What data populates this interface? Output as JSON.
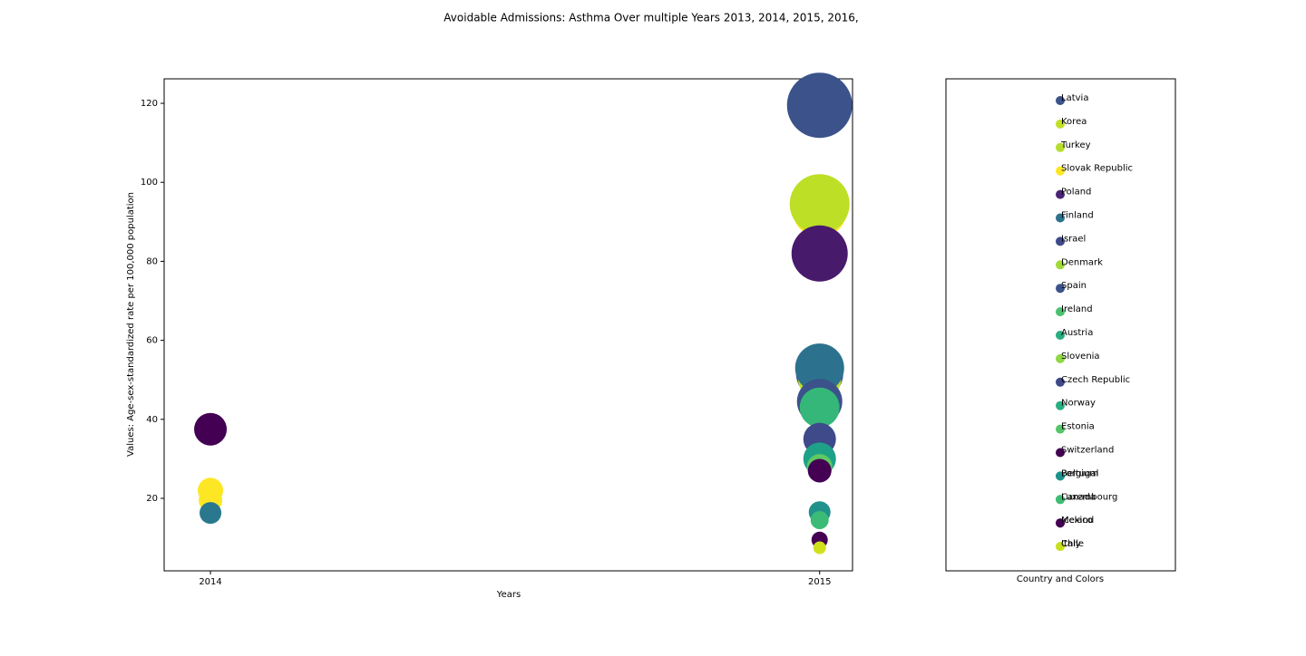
{
  "chart_data": [
    {
      "type": "scatter",
      "title": "Avoidable Admissions: Asthma Over multiple Years 2013, 2014, 2015, 2016,",
      "x_label": "Years",
      "y_label": "Values: Age-sex-standardized rate per 100,000 population",
      "xlim": [
        2013.924,
        2015.054
      ],
      "ylim": [
        1.65,
        126.2
      ],
      "xticks": [
        2014,
        2015
      ],
      "yticks": [
        20,
        40,
        60,
        80,
        100,
        120
      ],
      "x": [
        2014,
        2014,
        2014,
        2014,
        2015,
        2015,
        2015,
        2015,
        2015,
        2015,
        2015,
        2015,
        2015,
        2015,
        2015,
        2015,
        2015,
        2015,
        2015,
        2015,
        2015
      ],
      "values": [
        37.5,
        22,
        19.5,
        16.3,
        119.5,
        93,
        94.5,
        82,
        51.5,
        50.5,
        53,
        44.5,
        43,
        35,
        30,
        28,
        27,
        16.5,
        14.5,
        9.5,
        7.5
      ],
      "sizes": [
        18,
        14,
        13,
        12,
        36,
        30,
        33,
        31,
        26,
        24,
        27,
        25,
        22,
        18,
        18,
        14,
        13,
        12,
        10,
        9,
        7
      ],
      "colors": [
        "#440154",
        "#fde725",
        "#fde725",
        "#2a788e",
        "#3b528b",
        "#fde725",
        "#bddf26",
        "#481a6c",
        "#3e4989",
        "#c2df23",
        "#2c728e",
        "#3b528b",
        "#35b779",
        "#3e4a89",
        "#1fa187",
        "#5ec962",
        "#440154",
        "#21918c",
        "#3bbb75",
        "#440154",
        "#d0e11c"
      ]
    },
    {
      "type": "legend",
      "x_label": "Country and Colors",
      "rows": [
        [
          {
            "name": "Latvia",
            "color": "#3b528b"
          }
        ],
        [
          {
            "name": "Korea",
            "color": "#c2df23"
          }
        ],
        [
          {
            "name": "Turkey",
            "color": "#b5de2b"
          }
        ],
        [
          {
            "name": "Slovak Republic",
            "color": "#fde725"
          }
        ],
        [
          {
            "name": "Poland",
            "color": "#482475"
          }
        ],
        [
          {
            "name": "Finland",
            "color": "#2c728e"
          }
        ],
        [
          {
            "name": "Israel",
            "color": "#3e4a89"
          }
        ],
        [
          {
            "name": "Denmark",
            "color": "#a0da39"
          }
        ],
        [
          {
            "name": "Spain",
            "color": "#3b528b"
          }
        ],
        [
          {
            "name": "Ireland",
            "color": "#4ac16d"
          }
        ],
        [
          {
            "name": "Austria",
            "color": "#27ad81"
          }
        ],
        [
          {
            "name": "Slovenia",
            "color": "#8fd744"
          }
        ],
        [
          {
            "name": "Czech Republic",
            "color": "#3e4989"
          }
        ],
        [
          {
            "name": "Norway",
            "color": "#28ae80"
          }
        ],
        [
          {
            "name": "Estonia",
            "color": "#54c568"
          }
        ],
        [
          {
            "name": "Switzerland",
            "color": "#440154"
          }
        ],
        [
          {
            "name": "Portugal",
            "color": "#20928c"
          },
          {
            "name": "Belgium",
            "color": "#20928c"
          }
        ],
        [
          {
            "name": "Canada",
            "color": "#3fbc73"
          },
          {
            "name": "Luxembourg",
            "color": "#3fbc73"
          }
        ],
        [
          {
            "name": "Iceland",
            "color": "#440154"
          },
          {
            "name": "Mexico",
            "color": "#440154"
          }
        ],
        [
          {
            "name": "Italy",
            "color": "#c8e020"
          },
          {
            "name": "Chile",
            "color": "#c8e020"
          }
        ]
      ]
    }
  ]
}
